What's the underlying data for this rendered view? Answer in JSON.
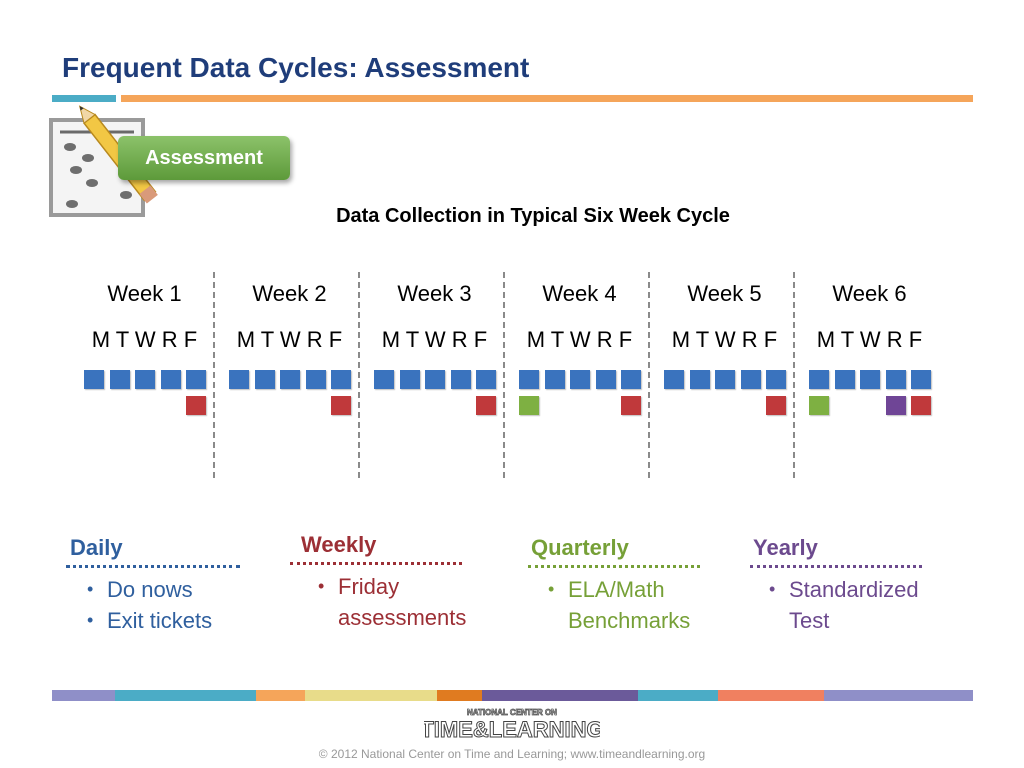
{
  "title": "Frequent Data Cycles: Assessment",
  "badge_label": "Assessment",
  "subtitle": "Data Collection in Typical Six Week Cycle",
  "weeks": [
    {
      "label": "Week 1",
      "days": "M T W R F",
      "row2": [
        null,
        null,
        null,
        null,
        "weekly"
      ]
    },
    {
      "label": "Week 2",
      "days": "M T W R F",
      "row2": [
        null,
        null,
        null,
        null,
        "weekly"
      ]
    },
    {
      "label": "Week 3",
      "days": "M T W R F",
      "row2": [
        null,
        null,
        null,
        null,
        "weekly"
      ]
    },
    {
      "label": "Week 4",
      "days": "M T W R F",
      "row2": [
        "quarterly",
        null,
        null,
        null,
        "weekly"
      ]
    },
    {
      "label": "Week 5",
      "days": "M T W R F",
      "row2": [
        null,
        null,
        null,
        null,
        "weekly"
      ]
    },
    {
      "label": "Week 6",
      "days": "M T W R F",
      "row2": [
        "quarterly",
        null,
        null,
        "yearly",
        "weekly"
      ]
    }
  ],
  "colors": {
    "daily": "#3a73be",
    "weekly": "#c0393b",
    "quarterly": "#7eb042",
    "yearly": "#6f4596"
  },
  "frequencies": [
    {
      "key": "daily",
      "title": "Daily",
      "color": "#2f5f9e",
      "items": [
        "Do nows",
        "Exit tickets"
      ]
    },
    {
      "key": "weekly",
      "title": "Weekly",
      "color": "#9c2f35",
      "items": [
        "Friday\nassessments"
      ]
    },
    {
      "key": "quarterly",
      "title": "Quarterly",
      "color": "#76a037",
      "items": [
        "ELA/Math\nBenchmarks"
      ]
    },
    {
      "key": "yearly",
      "title": "Yearly",
      "color": "#6c4a8e",
      "items": [
        "Standardized\nTest"
      ]
    }
  ],
  "logo": {
    "top": "NATIONAL CENTER ON",
    "main": "TIME&LEARNING"
  },
  "copyright": "© 2012 National Center on Time and Learning; www.timeandlearning.org"
}
